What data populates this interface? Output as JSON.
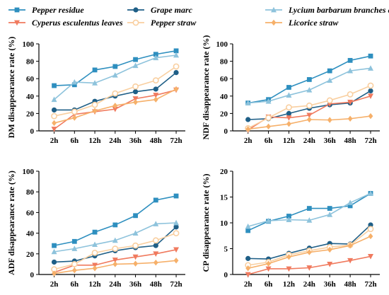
{
  "legend": [
    {
      "key": "pepper_residue",
      "label": "Pepper residue",
      "color": "#2E8FBF",
      "marker": "square"
    },
    {
      "key": "grape_marc",
      "label": "Grape marc",
      "color": "#1F5F87",
      "marker": "circle"
    },
    {
      "key": "lycium",
      "label": "Lycium barbarum branches and leaves",
      "color": "#8EC3DC",
      "marker": "triangle"
    },
    {
      "key": "cyperus",
      "label": "Cyperus esculentus leaves",
      "color": "#F07A5E",
      "marker": "triangle-down"
    },
    {
      "key": "pepper_straw",
      "label": "Pepper straw",
      "color": "#F9CFA0",
      "marker": "circle-open"
    },
    {
      "key": "licorice",
      "label": "Licorice straw",
      "color": "#F6B06A",
      "marker": "diamond"
    }
  ],
  "chart_data": [
    {
      "id": "dm",
      "type": "line",
      "ylabel": "DM disappearance rate (%)",
      "x": [
        "2h",
        "6h",
        "12h",
        "24h",
        "36h",
        "48h",
        "72h"
      ],
      "ylim": [
        0,
        100
      ],
      "yticks": [
        "0",
        "20",
        "40",
        "60",
        "80",
        "100"
      ],
      "series": [
        {
          "name": "Pepper residue",
          "values": [
            52,
            53,
            70,
            74,
            82,
            88,
            92
          ]
        },
        {
          "name": "Grape marc",
          "values": [
            24,
            24,
            34,
            40,
            45,
            48,
            67
          ]
        },
        {
          "name": "Lycium barbarum branches and leaves",
          "values": [
            36,
            56,
            55,
            64,
            75,
            84,
            87
          ]
        },
        {
          "name": "Cyperus esculentus leaves",
          "values": [
            2,
            19,
            22,
            25,
            37,
            41,
            47
          ]
        },
        {
          "name": "Pepper straw",
          "values": [
            17,
            22,
            30,
            43,
            51,
            58,
            74
          ]
        },
        {
          "name": "Licorice straw",
          "values": [
            9,
            15,
            23,
            29,
            33,
            36,
            48
          ]
        }
      ]
    },
    {
      "id": "ndf",
      "type": "line",
      "ylabel": "NDF disappearance rate (%)",
      "x": [
        "2h",
        "6h",
        "12h",
        "24h",
        "36h",
        "48h",
        "72h"
      ],
      "ylim": [
        0,
        100
      ],
      "yticks": [
        "0",
        "20",
        "40",
        "60",
        "80",
        "100"
      ],
      "series": [
        {
          "name": "Pepper residue",
          "values": [
            32,
            36,
            50,
            59,
            69,
            81,
            86
          ]
        },
        {
          "name": "Grape marc",
          "values": [
            13,
            14,
            20,
            26,
            30,
            32,
            46
          ]
        },
        {
          "name": "Lycium barbarum branches and leaves",
          "values": [
            32,
            34,
            41,
            47,
            58,
            69,
            72
          ]
        },
        {
          "name": "Cyperus esculentus leaves",
          "values": [
            1,
            16,
            15,
            18,
            31,
            33,
            40
          ]
        },
        {
          "name": "Pepper straw",
          "values": [
            3,
            15,
            27,
            29,
            35,
            42,
            52
          ]
        },
        {
          "name": "Licorice straw",
          "values": [
            2,
            5,
            8,
            13,
            12.5,
            14,
            17
          ]
        }
      ]
    },
    {
      "id": "adf",
      "type": "line",
      "ylabel": "ADF disappearance rate (%)",
      "x": [
        "2h",
        "6h",
        "12h",
        "24h",
        "36h",
        "48h",
        "72h"
      ],
      "ylim": [
        0,
        100
      ],
      "yticks": [
        "0",
        "20",
        "40",
        "60",
        "80",
        "100"
      ],
      "series": [
        {
          "name": "Pepper residue",
          "values": [
            28,
            32,
            41,
            48,
            57,
            72,
            76
          ]
        },
        {
          "name": "Grape marc",
          "values": [
            12,
            13,
            18,
            23,
            26,
            28,
            46
          ]
        },
        {
          "name": "Lycium barbarum branches and leaves",
          "values": [
            22,
            25,
            29,
            33,
            40,
            49,
            50
          ]
        },
        {
          "name": "Cyperus esculentus leaves",
          "values": [
            2,
            9,
            9,
            14,
            17,
            20,
            24
          ]
        },
        {
          "name": "Pepper straw",
          "values": [
            5,
            10,
            21,
            25,
            28,
            33,
            40
          ]
        },
        {
          "name": "Licorice straw",
          "values": [
            1,
            4,
            6,
            10,
            10.5,
            11.5,
            13.5
          ]
        }
      ]
    },
    {
      "id": "cp",
      "type": "line",
      "ylabel": "CP disappearance rate (%)",
      "x": [
        "2h",
        "6h",
        "12h",
        "24h",
        "36h",
        "48h",
        "72h"
      ],
      "ylim": [
        0,
        20
      ],
      "yticks": [
        "0",
        "5",
        "10",
        "15",
        "20"
      ],
      "series": [
        {
          "name": "Pepper residue",
          "values": [
            8.5,
            10.3,
            11.3,
            12.8,
            12.8,
            13.3,
            15.7
          ]
        },
        {
          "name": "Grape marc",
          "values": [
            3.1,
            3.0,
            4.1,
            5.1,
            6.0,
            5.9,
            9.6
          ]
        },
        {
          "name": "Lycium barbarum branches and leaves",
          "values": [
            9.3,
            10.4,
            10.6,
            10.5,
            11.6,
            13.9,
            15.7
          ]
        },
        {
          "name": "Cyperus esculentus leaves",
          "values": [
            0.0,
            1.1,
            1.1,
            1.3,
            2.0,
            2.7,
            3.5
          ]
        },
        {
          "name": "Pepper straw",
          "values": [
            1.8,
            2.4,
            3.8,
            4.6,
            5.3,
            5.7,
            8.8
          ]
        },
        {
          "name": "Licorice straw",
          "values": [
            1.2,
            2.1,
            3.4,
            4.3,
            4.8,
            5.6,
            7.4
          ]
        }
      ]
    }
  ]
}
